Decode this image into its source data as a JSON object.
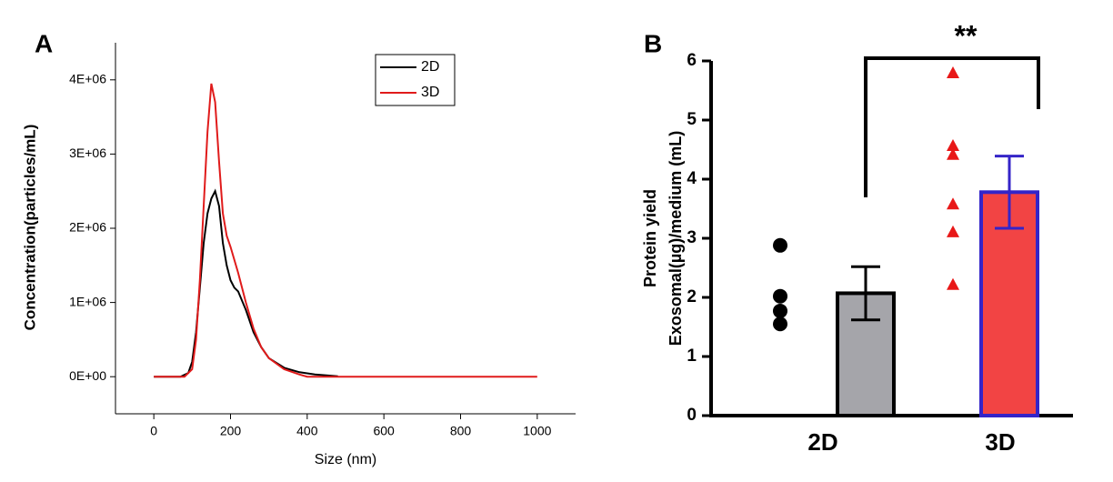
{
  "chart_data": [
    {
      "type": "line",
      "panel": "A",
      "x_label": "Size (nm)",
      "y_label": "Concentration(particles/mL)",
      "xlim": [
        -100,
        1100
      ],
      "xticks": [
        0,
        200,
        400,
        600,
        800,
        1000
      ],
      "ylim": [
        -500000,
        4500000
      ],
      "yticks": [
        {
          "value": 0,
          "label": "0E+00"
        },
        {
          "value": 1000000,
          "label": "1E+06"
        },
        {
          "value": 2000000,
          "label": "2E+06"
        },
        {
          "value": 3000000,
          "label": "3E+06"
        },
        {
          "value": 4000000,
          "label": "4E+06"
        }
      ],
      "legend": "upper center",
      "series": [
        {
          "name": "2D",
          "color": "#000000",
          "x": [
            0,
            70,
            90,
            100,
            110,
            120,
            130,
            140,
            150,
            160,
            170,
            180,
            190,
            200,
            210,
            220,
            240,
            260,
            280,
            300,
            340,
            380,
            420,
            480
          ],
          "values": [
            0,
            0,
            50000,
            200000,
            600000,
            1200000,
            1800000,
            2200000,
            2400000,
            2500000,
            2300000,
            1800000,
            1500000,
            1300000,
            1200000,
            1150000,
            900000,
            600000,
            400000,
            250000,
            120000,
            60000,
            30000,
            5000
          ]
        },
        {
          "name": "3D",
          "color": "#e01b1b",
          "x": [
            0,
            80,
            100,
            110,
            120,
            130,
            140,
            150,
            160,
            170,
            180,
            190,
            200,
            220,
            240,
            260,
            280,
            300,
            340,
            380,
            400,
            1000
          ],
          "values": [
            0,
            0,
            100000,
            500000,
            1300000,
            2300000,
            3300000,
            3950000,
            3700000,
            2900000,
            2200000,
            1900000,
            1750000,
            1400000,
            1000000,
            650000,
            400000,
            250000,
            100000,
            30000,
            0,
            0
          ]
        }
      ]
    },
    {
      "type": "bar",
      "panel": "B",
      "y_label": [
        "Protein yield",
        "Exosomal(µg)/medium (mL)"
      ],
      "categories": [
        "2D",
        "3D"
      ],
      "values": [
        2.07,
        3.78
      ],
      "errors": [
        0.45,
        0.61
      ],
      "colors": [
        "#a5a5aa",
        "#f24444"
      ],
      "edge_colors": [
        "#000000",
        "#3424c8"
      ],
      "points": [
        [
          2.88,
          2.02,
          1.77,
          1.55
        ],
        [
          5.8,
          4.57,
          4.42,
          3.58,
          3.11,
          2.22
        ]
      ],
      "point_colors": [
        "#000000",
        "#e81818"
      ],
      "ylim": [
        0,
        6
      ],
      "yticks": [
        0,
        1,
        2,
        3,
        4,
        5,
        6
      ],
      "annotation": "**"
    }
  ]
}
